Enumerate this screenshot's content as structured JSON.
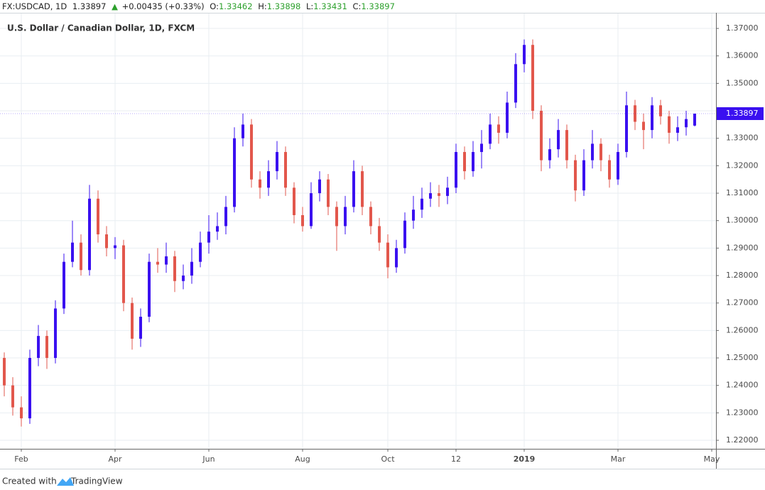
{
  "header": {
    "symbol": "FX:USDCAD, 1D",
    "last": "1.33897",
    "arrow": "▲",
    "change": "+0.00435 (+0.33%)",
    "ohlc": [
      {
        "label": "O:",
        "value": "1.33462"
      },
      {
        "label": "H:",
        "value": "1.33898"
      },
      {
        "label": "L:",
        "value": "1.33431"
      },
      {
        "label": "C:",
        "value": "1.33897"
      }
    ]
  },
  "footer": {
    "created": "Created with",
    "brand": "TradingView"
  },
  "chart_data": {
    "type": "candlestick",
    "title": "U.S. Dollar / Canadian Dollar, 1D, FXCM",
    "up_color": "#3a10f0",
    "down_color": "#e2574c",
    "grid": true,
    "categories": [
      null,
      null,
      "Feb",
      null,
      null,
      null,
      null,
      null,
      null,
      null,
      null,
      null,
      null,
      "Apr",
      null,
      null,
      null,
      null,
      null,
      null,
      null,
      null,
      null,
      null,
      "Jun",
      null,
      null,
      null,
      null,
      null,
      null,
      null,
      null,
      null,
      null,
      "Aug",
      null,
      null,
      null,
      null,
      null,
      null,
      null,
      null,
      null,
      "Oct",
      null,
      null,
      null,
      null,
      null,
      null,
      null,
      "12",
      null,
      null,
      null,
      null,
      null,
      null,
      null,
      "2019",
      null,
      null,
      null,
      null,
      null,
      null,
      null,
      null,
      null,
      null,
      "Mar",
      null,
      null,
      null,
      null,
      null,
      null,
      null,
      null,
      null,
      null,
      "May"
    ],
    "open": [
      1.25,
      1.24,
      1.232,
      1.228,
      1.25,
      1.258,
      1.25,
      1.268,
      1.285,
      1.292,
      1.282,
      1.308,
      1.295,
      1.29,
      1.291,
      1.27,
      1.257,
      1.265,
      1.285,
      1.284,
      1.287,
      1.278,
      1.28,
      1.285,
      1.292,
      1.296,
      1.298,
      1.305,
      1.33,
      1.335,
      1.315,
      1.312,
      1.318,
      1.325,
      1.312,
      1.302,
      1.298,
      1.31,
      1.315,
      1.305,
      1.298,
      1.305,
      1.318,
      1.305,
      1.298,
      1.292,
      1.283,
      1.29,
      1.3,
      1.304,
      1.308,
      1.31,
      1.309,
      1.312,
      1.325,
      1.318,
      1.325,
      1.328,
      1.335,
      1.332,
      1.343,
      1.357,
      1.364,
      1.34,
      1.322,
      1.326,
      1.333,
      1.322,
      1.311,
      1.322,
      1.328,
      1.322,
      1.315,
      1.325,
      1.342,
      1.336,
      1.333,
      1.342,
      1.338,
      1.332,
      1.334,
      1.33462,
      null,
      null
    ],
    "high": [
      1.252,
      1.243,
      1.236,
      1.253,
      1.262,
      1.26,
      1.271,
      1.288,
      1.3,
      1.295,
      1.313,
      1.311,
      1.298,
      1.294,
      1.293,
      1.272,
      1.268,
      1.288,
      1.29,
      1.292,
      1.289,
      1.284,
      1.29,
      1.296,
      1.302,
      1.303,
      1.309,
      1.334,
      1.339,
      1.337,
      1.318,
      1.322,
      1.329,
      1.327,
      1.314,
      1.305,
      1.314,
      1.318,
      1.317,
      1.307,
      1.309,
      1.322,
      1.32,
      1.307,
      1.301,
      1.295,
      1.293,
      1.303,
      1.309,
      1.312,
      1.314,
      1.313,
      1.316,
      1.328,
      1.327,
      1.329,
      1.333,
      1.339,
      1.338,
      1.347,
      1.361,
      1.366,
      1.366,
      1.342,
      1.33,
      1.337,
      1.335,
      1.324,
      1.326,
      1.333,
      1.33,
      1.324,
      1.328,
      1.347,
      1.344,
      1.339,
      1.345,
      1.344,
      1.34,
      1.338,
      1.34,
      1.33898,
      null,
      null
    ],
    "low": [
      1.236,
      1.229,
      1.225,
      1.226,
      1.247,
      1.246,
      1.248,
      1.266,
      1.283,
      1.28,
      1.28,
      1.292,
      1.287,
      1.286,
      1.267,
      1.253,
      1.254,
      1.263,
      1.281,
      1.281,
      1.274,
      1.275,
      1.277,
      1.283,
      1.288,
      1.293,
      1.295,
      1.303,
      1.327,
      1.312,
      1.308,
      1.309,
      1.315,
      1.309,
      1.299,
      1.296,
      1.297,
      1.307,
      1.302,
      1.289,
      1.295,
      1.303,
      1.302,
      1.295,
      1.289,
      1.279,
      1.281,
      1.288,
      1.297,
      1.301,
      1.305,
      1.305,
      1.306,
      1.31,
      1.315,
      1.316,
      1.319,
      1.326,
      1.328,
      1.33,
      1.341,
      1.354,
      1.337,
      1.318,
      1.319,
      1.323,
      1.319,
      1.307,
      1.309,
      1.319,
      1.318,
      1.312,
      1.313,
      1.323,
      1.333,
      1.326,
      1.33,
      1.335,
      1.328,
      1.329,
      1.331,
      1.33431,
      null,
      null
    ],
    "close": [
      1.24,
      1.232,
      1.228,
      1.25,
      1.258,
      1.25,
      1.268,
      1.285,
      1.292,
      1.282,
      1.308,
      1.295,
      1.29,
      1.291,
      1.27,
      1.257,
      1.265,
      1.285,
      1.284,
      1.287,
      1.278,
      1.28,
      1.285,
      1.292,
      1.296,
      1.298,
      1.305,
      1.33,
      1.335,
      1.315,
      1.312,
      1.318,
      1.325,
      1.312,
      1.302,
      1.298,
      1.31,
      1.315,
      1.305,
      1.298,
      1.305,
      1.318,
      1.305,
      1.298,
      1.292,
      1.283,
      1.29,
      1.3,
      1.304,
      1.308,
      1.31,
      1.309,
      1.312,
      1.325,
      1.318,
      1.325,
      1.328,
      1.335,
      1.332,
      1.343,
      1.357,
      1.364,
      1.34,
      1.322,
      1.326,
      1.333,
      1.322,
      1.311,
      1.322,
      1.328,
      1.322,
      1.315,
      1.325,
      1.342,
      1.336,
      1.333,
      1.342,
      1.338,
      1.332,
      1.334,
      1.337,
      1.33897,
      null,
      null
    ],
    "last_price": 1.33897,
    "ylim": [
      1.2169,
      1.3757
    ],
    "yticks": [
      {
        "value": 1.22,
        "label": "1.22000"
      },
      {
        "value": 1.23,
        "label": "1.23000"
      },
      {
        "value": 1.24,
        "label": "1.24000"
      },
      {
        "value": 1.25,
        "label": "1.25000"
      },
      {
        "value": 1.26,
        "label": "1.26000"
      },
      {
        "value": 1.27,
        "label": "1.27000"
      },
      {
        "value": 1.28,
        "label": "1.28000"
      },
      {
        "value": 1.29,
        "label": "1.29000"
      },
      {
        "value": 1.3,
        "label": "1.30000"
      },
      {
        "value": 1.31,
        "label": "1.31000"
      },
      {
        "value": 1.32,
        "label": "1.32000"
      },
      {
        "value": 1.33,
        "label": "1.33000"
      },
      {
        "value": 1.34,
        "label": "1.34000"
      },
      {
        "value": 1.35,
        "label": "1.35000"
      },
      {
        "value": 1.36,
        "label": "1.36000"
      },
      {
        "value": 1.37,
        "label": "1.37000"
      }
    ]
  }
}
